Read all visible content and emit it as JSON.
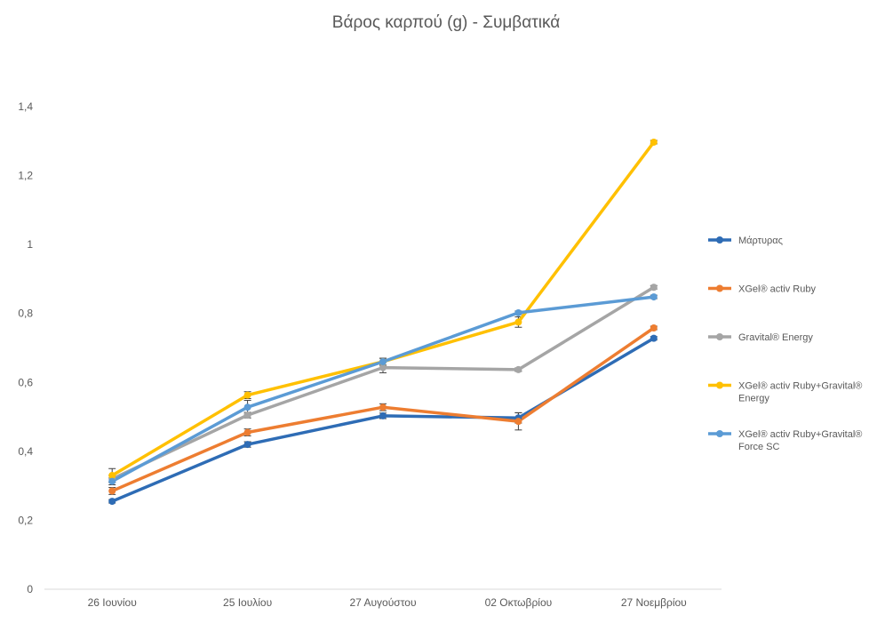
{
  "chart_data": {
    "type": "line",
    "title": "Βάρος καρπού (g) - Συμβατικά",
    "xlabel": "",
    "ylabel": "",
    "categories": [
      "26 Ιουνίου",
      "25 Ιουλίου",
      "27 Αυγούστου",
      "02 Οκτωβρίου",
      "27 Νοεμβρίου"
    ],
    "ylim": [
      0,
      1.4
    ],
    "yticks": [
      "0",
      "0,2",
      "0,4",
      "0,6",
      "0,8",
      "1",
      "1,2",
      "1,4"
    ],
    "grid": false,
    "legend_position": "right",
    "series": [
      {
        "name": "Μάρτυρας",
        "color": "#2E6CB5",
        "values": [
          0.255,
          0.42,
          0.503,
          0.497,
          0.728
        ],
        "errors": [
          0.005,
          0.008,
          0.008,
          0.015,
          0.005
        ]
      },
      {
        "name": "XGel® activ Ruby",
        "color": "#ED7D31",
        "values": [
          0.285,
          0.455,
          0.528,
          0.487,
          0.758
        ],
        "errors": [
          0.01,
          0.01,
          0.01,
          0.025,
          0.005
        ]
      },
      {
        "name": "Gravital® Energy",
        "color": "#A5A5A5",
        "values": [
          0.32,
          0.505,
          0.643,
          0.637,
          0.876
        ],
        "errors": [
          0.01,
          0.008,
          0.015,
          0.005,
          0.005
        ]
      },
      {
        "name": "XGel® activ Ruby+Gravital® Energy",
        "color": "#FFC000",
        "values": [
          0.33,
          0.563,
          0.66,
          0.775,
          1.297
        ],
        "errors": [
          0.02,
          0.01,
          0.01,
          0.015,
          0.005
        ]
      },
      {
        "name": "XGel® activ Ruby+Gravital® Force SC",
        "color": "#5B9BD5",
        "values": [
          0.313,
          0.528,
          0.66,
          0.802,
          0.848
        ],
        "errors": [
          0.01,
          0.02,
          0.01,
          0.005,
          0.005
        ]
      }
    ]
  }
}
